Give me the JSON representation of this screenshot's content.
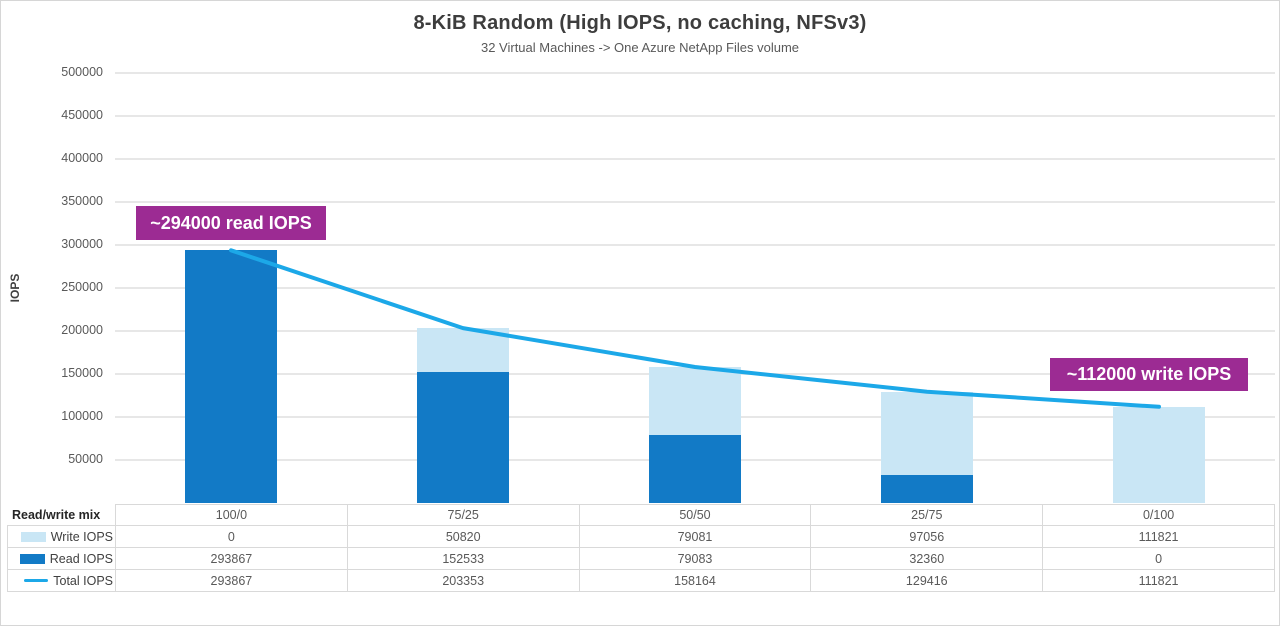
{
  "header": {
    "title": "8-KiB Random (High IOPS, no caching, NFSv3)",
    "subtitle": "32 Virtual Machines -> One Azure NetApp Files volume"
  },
  "annotations": {
    "read_peak": "~294000 read IOPS",
    "write_peak": "~112000 write IOPS"
  },
  "colors": {
    "write_bar": "#c9e6f5",
    "read_bar": "#127ac6",
    "total_line": "#1ca8e8",
    "annotation_bg": "#9c2b93",
    "gridline": "#e7e7e7",
    "table_border": "#d9d9d9"
  },
  "chart_data": {
    "type": "bar",
    "stacked": true,
    "title": "8-KiB Random (High IOPS, no caching, NFSv3)",
    "subtitle": "32 Virtual Machines -> One Azure NetApp Files volume",
    "xlabel": "Read/write mix",
    "ylabel": "IOPS",
    "ylim": [
      0,
      500000
    ],
    "ytick_step": 50000,
    "grid": true,
    "legend_position": "table",
    "categories": [
      "100/0",
      "75/25",
      "50/50",
      "25/75",
      "0/100"
    ],
    "series": [
      {
        "name": "Write IOPS",
        "type": "bar",
        "color": "#c9e6f5",
        "values": [
          0,
          50820,
          79081,
          97056,
          111821
        ]
      },
      {
        "name": "Read IOPS",
        "type": "bar",
        "color": "#127ac6",
        "values": [
          293867,
          152533,
          79083,
          32360,
          0
        ]
      },
      {
        "name": "Total IOPS",
        "type": "line",
        "color": "#1ca8e8",
        "values": [
          293867,
          203353,
          158164,
          129416,
          111821
        ]
      }
    ]
  }
}
